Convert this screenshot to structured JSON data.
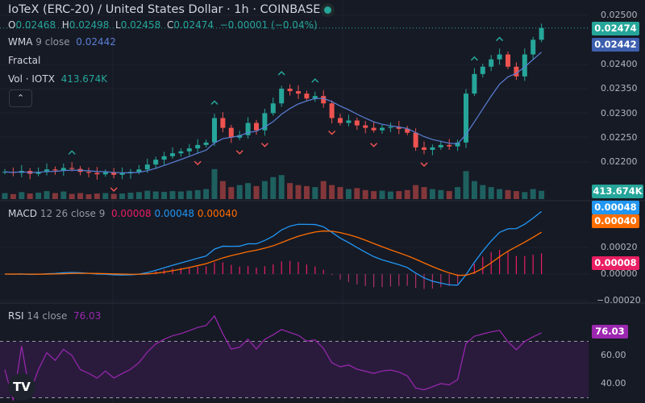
{
  "header": {
    "title": "IoTeX (ERC-20) / United States Dollar · 1h · COINBASE",
    "ohlc": {
      "o_label": "O",
      "o": "0.02468",
      "h_label": "H",
      "h": "0.02498",
      "l_label": "L",
      "l": "0.02458",
      "c_label": "C",
      "c": "0.02474",
      "change": "−0.00001 (−0.04%)"
    },
    "status_color": "#26a69a"
  },
  "legends": {
    "wma": {
      "name": "WMA",
      "params": "9 close",
      "value": "0.02442"
    },
    "fractal": {
      "name": "Fractal"
    },
    "vol": {
      "name": "Vol · IOTX",
      "value": "413.674K"
    },
    "collapse_icon": "chevron-up-icon",
    "macd": {
      "name": "MACD",
      "params": "12 26 close 9",
      "hist": "0.00008",
      "macd": "0.00048",
      "signal": "0.00040"
    },
    "rsi": {
      "name": "RSI",
      "params": "14 close",
      "value": "76.03"
    }
  },
  "axis": {
    "price_ticks": [
      "0.02500",
      "0.02400",
      "0.02350",
      "0.02300",
      "0.02250",
      "0.02200"
    ],
    "macd_ticks": [
      "0.00020",
      "0.00000",
      "−0.00020"
    ],
    "rsi_ticks": [
      "60.00",
      "40.00"
    ]
  },
  "tags": {
    "price": "0.02474",
    "wma": "0.02442",
    "vol": "413.674K",
    "macd": "0.00048",
    "signal": "0.00040",
    "hist": "0.00008",
    "rsi": "76.03"
  },
  "colors": {
    "up": "#26a69a",
    "down": "#ef5350",
    "wma": "#5b7fd6",
    "macd": "#2196f3",
    "signal": "#ff6d00",
    "hist": "#e91e63",
    "rsi": "#9c27b0"
  },
  "logo": "TV",
  "chart_data": {
    "type": "candlestick",
    "symbol": "IoTeX (ERC-20) / United States Dollar",
    "interval": "1h",
    "ylim": [
      0.0216,
      0.0251
    ],
    "close": [
      0.0218,
      0.02178,
      0.02182,
      0.02176,
      0.0218,
      0.02185,
      0.02183,
      0.02188,
      0.02186,
      0.0218,
      0.02178,
      0.02175,
      0.02179,
      0.02174,
      0.02177,
      0.0218,
      0.02185,
      0.02195,
      0.02205,
      0.02212,
      0.02218,
      0.02222,
      0.02228,
      0.02235,
      0.0224,
      0.0229,
      0.0227,
      0.0225,
      0.02255,
      0.0228,
      0.02265,
      0.023,
      0.0232,
      0.0235,
      0.02345,
      0.0234,
      0.0233,
      0.02335,
      0.0232,
      0.0229,
      0.0228,
      0.02285,
      0.02275,
      0.0227,
      0.02265,
      0.0227,
      0.02272,
      0.02268,
      0.0226,
      0.0223,
      0.02225,
      0.0223,
      0.02235,
      0.02232,
      0.0224,
      0.0234,
      0.0238,
      0.02395,
      0.0241,
      0.0242,
      0.02395,
      0.02375,
      0.0242,
      0.0245,
      0.02474
    ],
    "volume_k": [
      300,
      250,
      350,
      280,
      320,
      400,
      300,
      380,
      260,
      300,
      240,
      280,
      300,
      260,
      280,
      320,
      350,
      420,
      380,
      360,
      400,
      380,
      420,
      450,
      500,
      1500,
      900,
      600,
      700,
      800,
      650,
      900,
      1100,
      1200,
      800,
      700,
      650,
      600,
      900,
      700,
      600,
      500,
      550,
      450,
      400,
      420,
      380,
      400,
      450,
      700,
      600,
      500,
      450,
      400,
      600,
      1400,
      900,
      700,
      600,
      500,
      450,
      400,
      350,
      500,
      414
    ],
    "fractals_up": [
      8,
      25,
      33,
      37,
      56,
      59
    ],
    "fractals_down": [
      13,
      23,
      28,
      31,
      39,
      44,
      50
    ],
    "rsi_levels": [
      70,
      30
    ],
    "macd_ylim": [
      -0.00025,
      0.00055
    ],
    "rsi_ylim": [
      28,
      88
    ]
  }
}
